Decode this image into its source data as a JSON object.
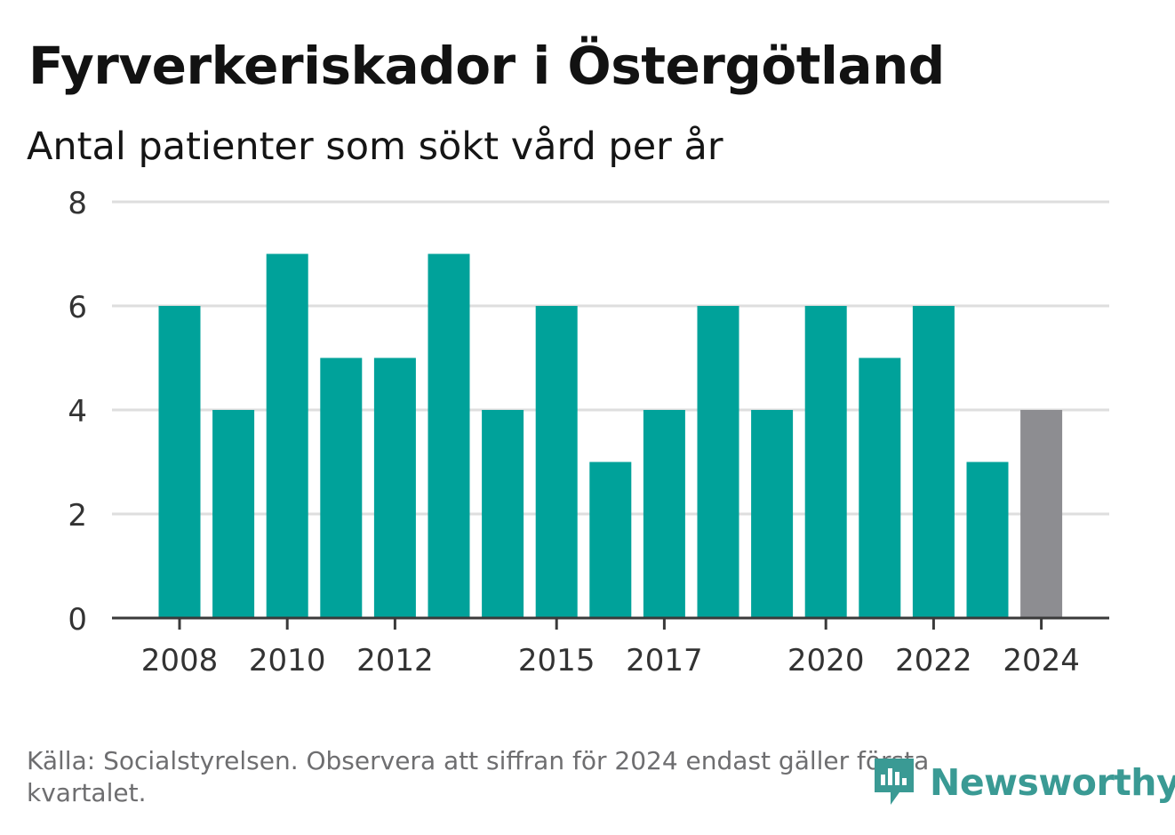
{
  "title": "Fyrverkeriskador i Östergötland",
  "subtitle": "Antal patienter som sökt vård per år",
  "footer": "Källa: Socialstyrelsen. Observera att siffran för 2024 endast gäller första kvartalet.",
  "logo": {
    "text": "Newsworthy",
    "icon": "newsworthy-logo-icon"
  },
  "colors": {
    "bar": "#00a29a",
    "bar_partial": "#8d8d91",
    "grid": "#dedede",
    "axis": "#3a3a3a",
    "logo": "#3a9a94"
  },
  "chart_data": {
    "type": "bar",
    "categories": [
      "2008",
      "2009",
      "2010",
      "2011",
      "2012",
      "2013",
      "2014",
      "2015",
      "2016",
      "2017",
      "2018",
      "2019",
      "2020",
      "2021",
      "2022",
      "2023",
      "2024"
    ],
    "values": [
      6,
      4,
      7,
      5,
      5,
      7,
      4,
      6,
      3,
      4,
      6,
      4,
      6,
      5,
      6,
      3,
      4
    ],
    "x_tick_labels": [
      "2008",
      "2010",
      "2012",
      "2015",
      "2017",
      "2020",
      "2022",
      "2024"
    ],
    "y_ticks": [
      0,
      2,
      4,
      6,
      8
    ],
    "ylim": [
      0,
      8
    ],
    "highlight_category": "2024",
    "grid": true
  }
}
